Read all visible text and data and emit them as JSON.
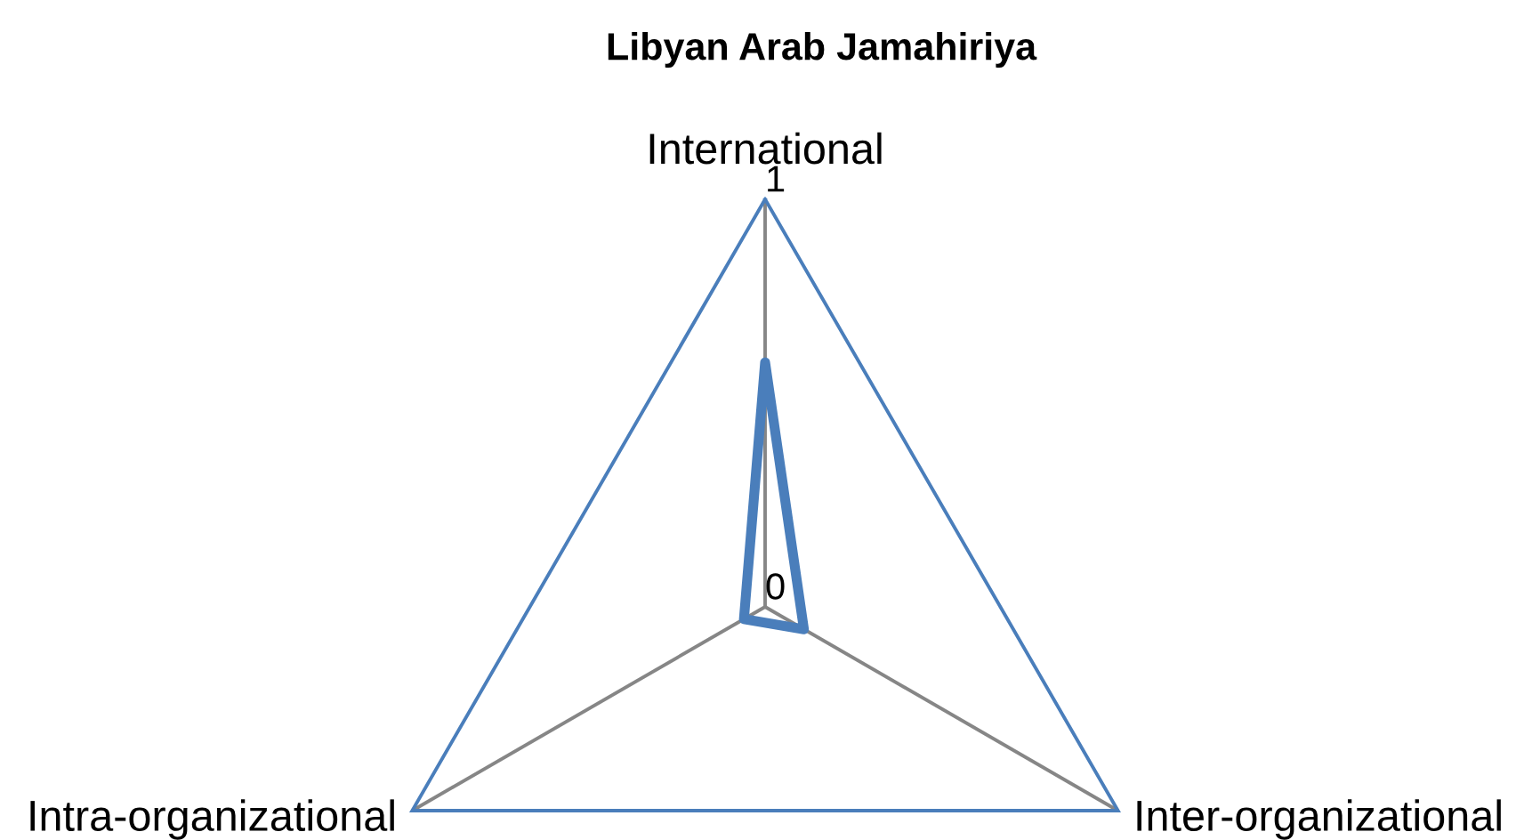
{
  "chart_data": {
    "type": "radar",
    "title": "Libyan Arab Jamahiriya",
    "categories": [
      "International",
      "Inter-organizational",
      "Intra-organizational"
    ],
    "series": [
      {
        "color": "#4a7ebb",
        "values": [
          0.6,
          0.11,
          0.06
        ]
      }
    ],
    "ylim": [
      0,
      1
    ],
    "yticks": [
      0,
      1
    ],
    "grid": true
  }
}
